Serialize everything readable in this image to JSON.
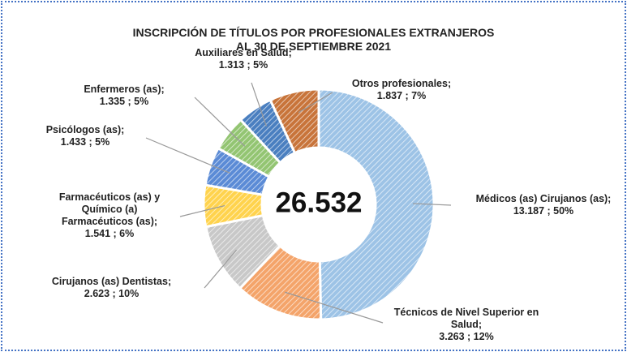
{
  "chart_data": {
    "type": "donut",
    "title": [
      "INSCRIPCIÓN DE TÍTULOS POR PROFESIONALES EXTRANJEROS",
      "AL 30 DE SEPTIEMBRE 2021"
    ],
    "center_label": "26.532",
    "categories": [
      "Médicos (as) Cirujanos (as);",
      "Técnicos de Nivel Superior en Salud;",
      "Cirujanos (as) Dentistas;",
      "Farmacéuticos (as) y Químico (a) Farmacéuticos (as);",
      "Psicólogos (as);",
      "Enfermeros (as);",
      "Auxiliares en Salud;",
      "Otros profesionales;"
    ],
    "values": [
      13187,
      3263,
      2623,
      1541,
      1433,
      1335,
      1313,
      1837
    ],
    "value_labels": [
      "13.187 ; 50%",
      "3.263 ; 12%",
      "2.623 ; 10%",
      "1.541 ; 6%",
      "1.433 ; 5%",
      "1.335 ; 5%",
      "1.313 ; 5%",
      "1.837 ; 7%"
    ],
    "colors": [
      "#9dc3e6",
      "#f4a46a",
      "#c8c8c8",
      "#ffd34d",
      "#5b8bd6",
      "#93c572",
      "#4a7fc0",
      "#c8743a"
    ]
  }
}
